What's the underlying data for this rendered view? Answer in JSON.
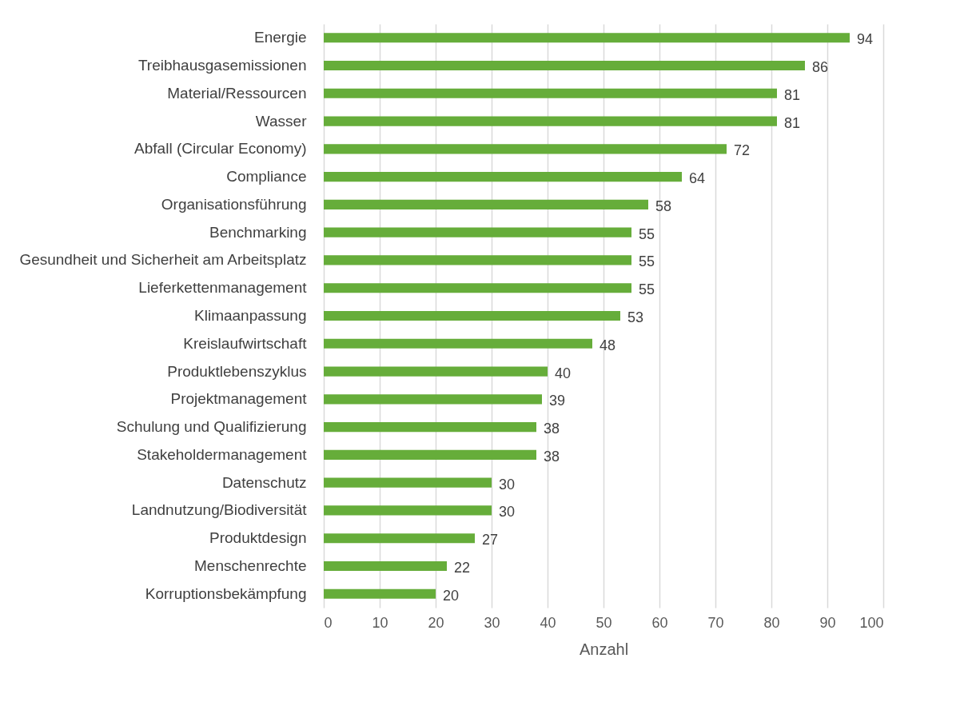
{
  "chart_data": {
    "type": "bar",
    "orientation": "horizontal",
    "xlabel": "Anzahl",
    "categories": [
      "Energie",
      "Treibhausgasemissionen",
      "Material/Ressourcen",
      "Wasser",
      "Abfall (Circular Economy)",
      "Compliance",
      "Organisationsführung",
      "Benchmarking",
      "Gesundheit und Sicherheit am Arbeitsplatz",
      "Lieferkettenmanagement",
      "Klimaanpassung",
      "Kreislaufwirtschaft",
      "Produktlebenszyklus",
      "Projektmanagement",
      "Schulung und Qualifizierung",
      "Stakeholdermanagement",
      "Datenschutz",
      "Landnutzung/Biodiversität",
      "Produktdesign",
      "Menschenrechte",
      "Korruptionsbekämpfung"
    ],
    "values": [
      94,
      86,
      81,
      81,
      72,
      64,
      58,
      55,
      55,
      55,
      53,
      48,
      40,
      39,
      38,
      38,
      30,
      30,
      27,
      22,
      20
    ],
    "color": "#66ad3a",
    "xlim": [
      0,
      100
    ],
    "xticks": [
      0,
      10,
      20,
      30,
      40,
      50,
      60,
      70,
      80,
      90,
      100
    ],
    "grid": "x",
    "data_labels": true
  }
}
